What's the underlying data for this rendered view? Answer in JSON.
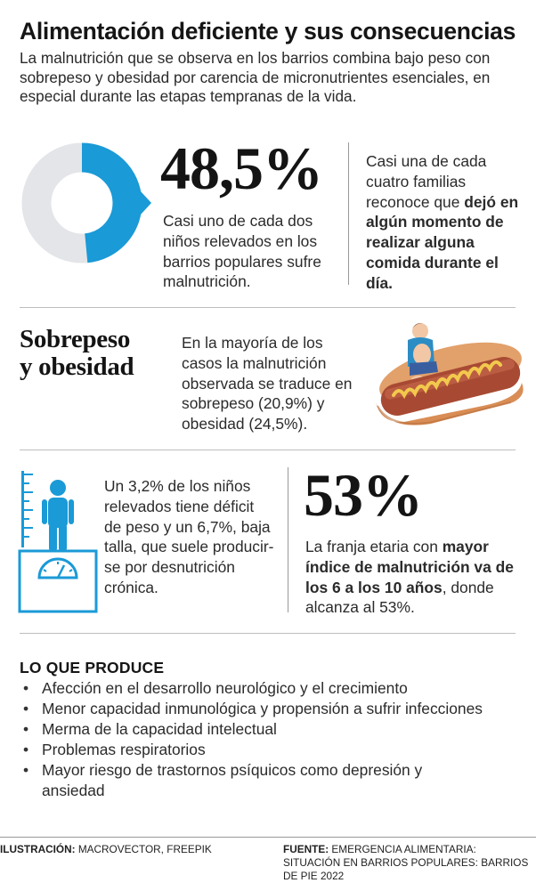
{
  "header": {
    "title": "Alimentación deficiente y sus consecuencias",
    "intro": "La malnutrición que se observa en los barrios combina bajo peso con sobrepeso y obesidad por carencia de micronutrientes esenciales, en especial durante las etapas tempranas de la vida."
  },
  "stat1": {
    "value": "48,5%",
    "percent": 48.5,
    "text": "Casi uno de cada dos niños relevados en los barrios populares sufre malnutrición."
  },
  "stat1_side": {
    "normal": "Casi una de cada cuatro familias reconoce que ",
    "bold": "dejó en algún momento de realizar alguna comida durante el día."
  },
  "overweight": {
    "heading_line1": "Sobrepeso",
    "heading_line2": "y obesidad",
    "text": "En la mayoría de los casos la malnutrición observada se traduce en sobrepeso (20,9%) y obesidad (24,5%)."
  },
  "deficit": {
    "text": "Un 3,2% de los niños relevados tiene déficit de peso y un 6,7%, baja talla, que suele producir-se por desnutrición crónica."
  },
  "stat2": {
    "value": "53%",
    "normal1": "La franja etaria con ",
    "bold": "mayor índice de malnutrición va de los 6 a los 10 años",
    "normal2": ", donde alcanza al 53%."
  },
  "effects": {
    "title": "LO QUE PRODUCE",
    "items": [
      "Afección en el desarrollo neurológico y el crecimiento",
      "Menor capacidad inmunológica y propensión a sufrir infecciones",
      "Merma de la capacidad intelectual",
      "Problemas respiratorios",
      "Mayor riesgo de trastornos psíquicos como depresión y ansiedad"
    ]
  },
  "footer": {
    "illustration_label": "ILUSTRACIÓN:",
    "illustration_value": "MACROVECTOR, FREEPIK",
    "source_label": "FUENTE:",
    "source_value": "EMERGENCIA ALIMENTARIA: SITUACIÓN EN BARRIOS POPULARES: BARRIOS DE PIE 2022"
  },
  "colors": {
    "accent": "#1a9ad7",
    "donut_rest": "#e3e5e8",
    "rule": "#bdbdbd"
  },
  "icons": {
    "donut": "donut-chart-icon",
    "hotdog": "child-on-hotdog-illustration",
    "scale": "child-on-scale-icon"
  }
}
